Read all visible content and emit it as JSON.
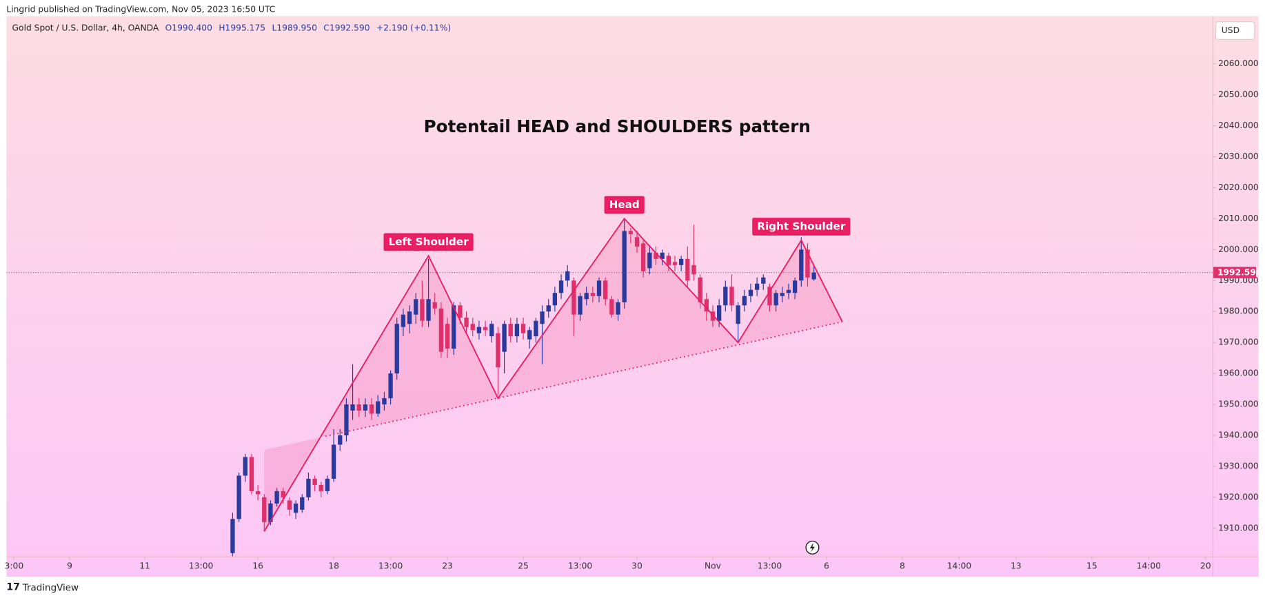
{
  "chart_data": {
    "type": "candlestick",
    "publisher": "Lingrid published on TradingView.com, Nov 05, 2023 16:50 UTC",
    "symbol": "Gold Spot / U.S. Dollar, 4h, OANDA",
    "ohlc_header": [
      "O1990.400",
      "H1995.175",
      "L1989.950",
      "C1992.590",
      "+2.190 (+0.11%)"
    ],
    "title": "Potentail HEAD and SHOULDERS pattern",
    "currency": "USD",
    "brand": "TradingView",
    "up_color": "#2a3a9c",
    "down_color": "#e0306b",
    "pattern_color": "#e91e63",
    "x": [
      -4,
      -3,
      -2,
      -1,
      0,
      1,
      2,
      3,
      4,
      5,
      6,
      7,
      8,
      9,
      10,
      11,
      12,
      13,
      14,
      15,
      16,
      17,
      18,
      19,
      20,
      21,
      22,
      23,
      24,
      25,
      26,
      27,
      28,
      29,
      30,
      31,
      32,
      33,
      34,
      35,
      36,
      37,
      38,
      39,
      40,
      41,
      42,
      43,
      44,
      45,
      46,
      47,
      48,
      49,
      50,
      51,
      52,
      53,
      54,
      55,
      56,
      57,
      58,
      59,
      60,
      61,
      62,
      63,
      64,
      65,
      66,
      67,
      68,
      69,
      70,
      71,
      72,
      73,
      74,
      75,
      76,
      77,
      78,
      79,
      80,
      81,
      82,
      83,
      84,
      85,
      86,
      87,
      88
    ],
    "open": [
      1902,
      1913,
      1927,
      1933,
      1922,
      1920,
      1912,
      1918,
      1922,
      1919,
      1915,
      1916,
      1920,
      1926,
      1924,
      1922,
      1926,
      1937,
      1940,
      1948,
      1950,
      1948,
      1950,
      1947,
      1950,
      1952,
      1960,
      1975,
      1976,
      1979,
      1984,
      1977,
      1983,
      1981,
      1976,
      1968,
      1982,
      1978,
      1976,
      1973,
      1975,
      1972,
      1973,
      1967,
      1976,
      1972,
      1976,
      1971,
      1972,
      1976,
      1980,
      1982,
      1986,
      1990,
      1990,
      1979,
      1984,
      1986,
      1985,
      1990,
      1984,
      1979,
      1983,
      2006,
      2004,
      2002,
      1994,
      1999,
      1997,
      1998,
      1996,
      1995,
      1997,
      1995,
      1991,
      1984,
      1980,
      1977,
      1982,
      1988,
      1976,
      1982,
      1985,
      1987,
      1989,
      1988,
      1982,
      1985,
      1986,
      1986,
      1990,
      2000,
      1990.4
    ],
    "high": [
      1915,
      1928,
      1934,
      1934,
      1924,
      1921,
      1919,
      1923,
      1923,
      1920,
      1919,
      1921,
      1928,
      1927,
      1925,
      1927,
      1942,
      1942,
      1952,
      1963,
      1952,
      1952,
      1952,
      1953,
      1954,
      1961,
      1978,
      1981,
      1982,
      1986,
      1990,
      1997,
      1986,
      1983,
      1978,
      1983,
      1983,
      1980,
      1978,
      1977,
      1977,
      1977,
      1975,
      1977,
      1978,
      1978,
      1978,
      1975,
      1978,
      1982,
      1984,
      1988,
      1992,
      1995,
      1991,
      1986,
      1988,
      1988,
      1991,
      1991,
      1985,
      1984,
      2010,
      2007,
      2006,
      2003,
      2001,
      2001,
      2000,
      1999,
      1998,
      1998,
      2001,
      2008,
      1992,
      1986,
      1982,
      1984,
      1990,
      1992,
      1983,
      1987,
      1989,
      1991,
      1992,
      1989,
      1987,
      1988,
      1989,
      1991,
      2004,
      2002,
      1995.175
    ],
    "low": [
      1901,
      1912,
      1925,
      1921,
      1919,
      1909,
      1911,
      1917,
      1918,
      1914,
      1913,
      1915,
      1919,
      1922,
      1920,
      1921,
      1925,
      1935,
      1938,
      1945,
      1946,
      1946,
      1945,
      1946,
      1948,
      1950,
      1958,
      1972,
      1973,
      1976,
      1975,
      1975,
      1979,
      1965,
      1965,
      1966,
      1976,
      1973,
      1972,
      1971,
      1972,
      1970,
      1953,
      1960,
      1970,
      1970,
      1971,
      1968,
      1970,
      1963,
      1978,
      1980,
      1984,
      1988,
      1972,
      1977,
      1982,
      1983,
      1983,
      1982,
      1978,
      1977,
      1981,
      2002,
      1999,
      1991,
      1992,
      1995,
      1995,
      1993,
      1993,
      1993,
      1988,
      1990,
      1981,
      1977,
      1975,
      1975,
      1980,
      1980,
      1970,
      1980,
      1983,
      1985,
      1987,
      1980,
      1980,
      1983,
      1984,
      1984,
      1988,
      1988,
      1989.95
    ],
    "close": [
      1913,
      1927,
      1933,
      1922,
      1921,
      1912,
      1918,
      1922,
      1920,
      1916,
      1918,
      1920,
      1926,
      1924,
      1922,
      1926,
      1937,
      1940,
      1950,
      1950,
      1948,
      1950,
      1947,
      1951,
      1952,
      1960,
      1976,
      1979,
      1980,
      1984,
      1977,
      1984,
      1981,
      1967,
      1968,
      1982,
      1978,
      1975,
      1974,
      1975,
      1974,
      1976,
      1962,
      1976,
      1972,
      1976,
      1973,
      1974,
      1977,
      1980,
      1982,
      1986,
      1990,
      1993,
      1979,
      1985,
      1986,
      1985,
      1990,
      1984,
      1979,
      1983,
      2006,
      2005,
      2001,
      1993,
      1999,
      1997,
      1999,
      1995,
      1995,
      1997,
      1990,
      1992,
      1983,
      1980,
      1977,
      1982,
      1988,
      1982,
      1982,
      1985,
      1987,
      1989,
      1991,
      1982,
      1986,
      1986,
      1987,
      1990,
      2000,
      1991,
      1992.59
    ],
    "last_price": {
      "value": 1992.59,
      "label": "1992.590"
    },
    "pattern": {
      "x": [
        1,
        27,
        38,
        58,
        76,
        86,
        92.5
      ],
      "y": [
        1909,
        1998,
        1952,
        2010,
        1970,
        2003,
        1976.7
      ]
    },
    "neckline": {
      "x": [
        10.7,
        92.5
      ],
      "y": [
        1939.7,
        1976.7
      ]
    },
    "annotations": [
      {
        "text": "Left Shoulder",
        "x": 27,
        "y": 1998
      },
      {
        "text": "Head",
        "x": 58,
        "y": 2010
      },
      {
        "text": "Right Shoulder",
        "x": 86,
        "y": 2003
      }
    ],
    "xlim": [
      -39.8,
      151.1
    ],
    "ylim": [
      1900.9,
      2075.4
    ],
    "xticks": [
      {
        "value": -38.6,
        "label": "3:00"
      },
      {
        "value": -29.8,
        "label": "9"
      },
      {
        "value": -17.9,
        "label": "11"
      },
      {
        "value": -9,
        "label": "13:00"
      },
      {
        "value": 0,
        "label": "16"
      },
      {
        "value": 12,
        "label": "18"
      },
      {
        "value": 21,
        "label": "13:00"
      },
      {
        "value": 30,
        "label": "23"
      },
      {
        "value": 42,
        "label": "25"
      },
      {
        "value": 51,
        "label": "13:00"
      },
      {
        "value": 60,
        "label": "30"
      },
      {
        "value": 72,
        "label": "Nov"
      },
      {
        "value": 81,
        "label": "13:00"
      },
      {
        "value": 90,
        "label": "6"
      },
      {
        "value": 102,
        "label": "8"
      },
      {
        "value": 111,
        "label": "14:00"
      },
      {
        "value": 120,
        "label": "13"
      },
      {
        "value": 132,
        "label": "15"
      },
      {
        "value": 141,
        "label": "14:00"
      },
      {
        "value": 150,
        "label": "20"
      }
    ],
    "yticks": [
      {
        "value": 1910,
        "label": "1910.000"
      },
      {
        "value": 1920,
        "label": "1920.000"
      },
      {
        "value": 1930,
        "label": "1930.000"
      },
      {
        "value": 1940,
        "label": "1940.000"
      },
      {
        "value": 1950,
        "label": "1950.000"
      },
      {
        "value": 1960,
        "label": "1960.000"
      },
      {
        "value": 1970,
        "label": "1970.000"
      },
      {
        "value": 1980,
        "label": "1980.000"
      },
      {
        "value": 1990,
        "label": "1990.000"
      },
      {
        "value": 2000,
        "label": "2000.000"
      },
      {
        "value": 2010,
        "label": "2010.000"
      },
      {
        "value": 2020,
        "label": "2020.000"
      },
      {
        "value": 2030,
        "label": "2030.000"
      },
      {
        "value": 2040,
        "label": "2040.000"
      },
      {
        "value": 2050,
        "label": "2050.000"
      },
      {
        "value": 2060,
        "label": "2060.000"
      }
    ]
  }
}
